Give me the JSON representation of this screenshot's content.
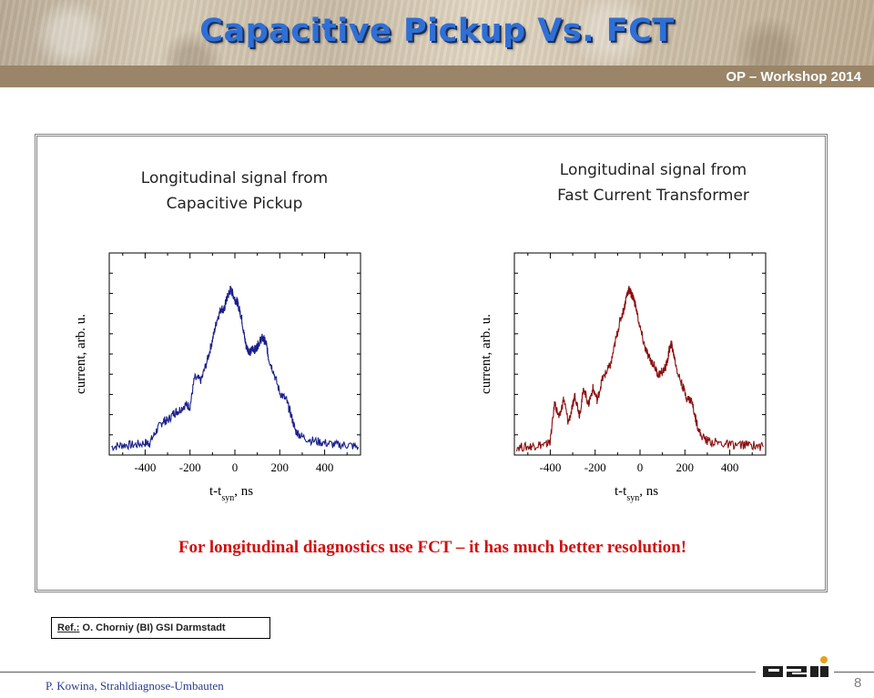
{
  "slide": {
    "title": "Capacitive Pickup Vs. FCT",
    "workshop": "OP – Workshop 2014",
    "conclusion": "For longitudinal diagnostics use FCT – it has much better resolution!",
    "ref_label": "Ref.:",
    "ref_text": " O. Chorniy (BI) GSI Darmstadt",
    "footer": "P. Kowina, Strahldiagnose-Umbauten",
    "page_number": "8",
    "logo_text": "GSI",
    "colors": {
      "title": "#2f6fd6",
      "conclusion": "#d01010",
      "cap_trace": "#1a1f8a",
      "fct_trace": "#8b1010"
    }
  },
  "chart_data": [
    {
      "type": "line",
      "title": "Longitudinal signal from Capacitive Pickup",
      "title_lines": [
        "Longitudinal signal from",
        "Capacitive Pickup"
      ],
      "ylabel": "current, arb. u.",
      "xlabel_main": "t-t",
      "xlabel_sub": "syn",
      "xlabel_tail": ", ns",
      "xlim": [
        -560,
        560
      ],
      "ylim": [
        0,
        1.0
      ],
      "xticks": [
        -400,
        -200,
        0,
        200,
        400
      ],
      "yticks_labeled": false,
      "grid": false,
      "series": [
        {
          "color": "#1a1f8a",
          "x": [
            -550,
            -500,
            -450,
            -400,
            -380,
            -350,
            -320,
            -300,
            -270,
            -250,
            -220,
            -200,
            -180,
            -150,
            -120,
            -100,
            -80,
            -60,
            -50,
            -40,
            -30,
            -20,
            -10,
            0,
            10,
            20,
            30,
            40,
            50,
            60,
            70,
            80,
            90,
            100,
            110,
            120,
            130,
            140,
            150,
            170,
            200,
            230,
            250,
            270,
            300,
            350,
            400,
            450,
            500,
            550
          ],
          "y": [
            0.04,
            0.05,
            0.05,
            0.06,
            0.06,
            0.12,
            0.17,
            0.17,
            0.21,
            0.22,
            0.25,
            0.24,
            0.38,
            0.37,
            0.48,
            0.57,
            0.67,
            0.73,
            0.71,
            0.76,
            0.79,
            0.82,
            0.8,
            0.77,
            0.76,
            0.72,
            0.68,
            0.6,
            0.54,
            0.52,
            0.51,
            0.53,
            0.52,
            0.54,
            0.56,
            0.58,
            0.57,
            0.55,
            0.48,
            0.42,
            0.31,
            0.27,
            0.2,
            0.12,
            0.09,
            0.07,
            0.06,
            0.05,
            0.05,
            0.04
          ]
        }
      ]
    },
    {
      "type": "line",
      "title": "Longitudinal signal from Fast Current Transformer",
      "title_lines": [
        "Longitudinal signal from",
        "Fast Current Transformer"
      ],
      "ylabel": "current, arb. u.",
      "xlabel_main": "t-t",
      "xlabel_sub": "syn",
      "xlabel_tail": ", ns",
      "xlim": [
        -560,
        560
      ],
      "ylim": [
        0,
        1.0
      ],
      "xticks": [
        -400,
        -200,
        0,
        200,
        400
      ],
      "yticks_labeled": false,
      "grid": false,
      "series": [
        {
          "color": "#8b1010",
          "x": [
            -550,
            -500,
            -460,
            -420,
            -400,
            -380,
            -360,
            -340,
            -320,
            -300,
            -290,
            -270,
            -250,
            -230,
            -210,
            -190,
            -170,
            -150,
            -130,
            -110,
            -90,
            -70,
            -60,
            -50,
            -40,
            -30,
            -20,
            0,
            20,
            40,
            60,
            80,
            100,
            120,
            130,
            140,
            150,
            170,
            190,
            210,
            230,
            250,
            270,
            300,
            350,
            400,
            450,
            500,
            550
          ],
          "y": [
            0.04,
            0.04,
            0.05,
            0.05,
            0.07,
            0.26,
            0.18,
            0.28,
            0.16,
            0.24,
            0.3,
            0.2,
            0.33,
            0.25,
            0.33,
            0.27,
            0.37,
            0.41,
            0.45,
            0.56,
            0.66,
            0.73,
            0.79,
            0.82,
            0.8,
            0.78,
            0.74,
            0.63,
            0.54,
            0.48,
            0.45,
            0.4,
            0.41,
            0.45,
            0.52,
            0.55,
            0.5,
            0.4,
            0.34,
            0.28,
            0.27,
            0.17,
            0.1,
            0.07,
            0.06,
            0.05,
            0.05,
            0.05,
            0.04
          ]
        }
      ]
    }
  ]
}
